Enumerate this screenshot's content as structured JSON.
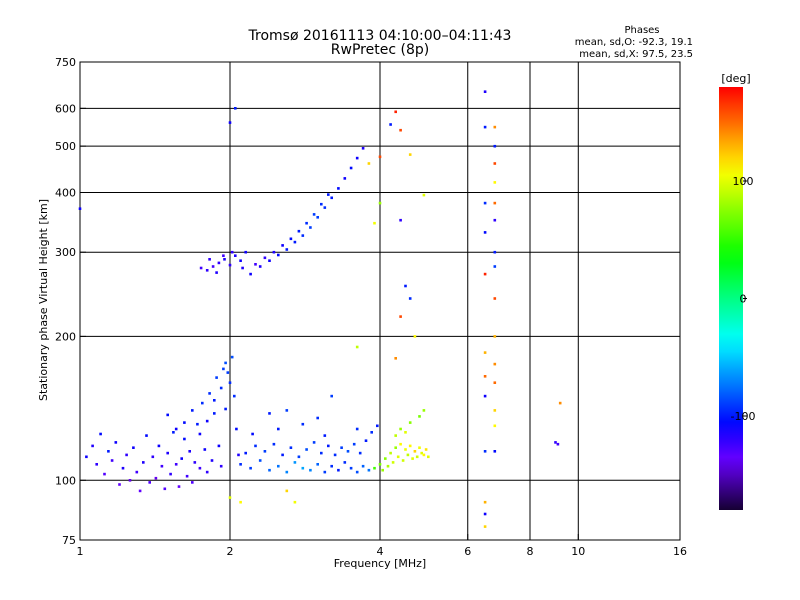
{
  "chart_data": {
    "type": "scatter",
    "title": "Tromsø 20161113 04:10:00–04:11:43",
    "subtitle": "RwPretec (8p)",
    "xlabel": "Frequency [MHz]",
    "ylabel": "Stationary phase Virtual Height [km]",
    "x_scale": "log",
    "y_scale": "log",
    "xlim": [
      1,
      16
    ],
    "ylim": [
      75,
      750
    ],
    "x_ticks": [
      1,
      2,
      4,
      6,
      8,
      10,
      16
    ],
    "y_ticks": [
      75,
      100,
      200,
      300,
      400,
      500,
      600,
      750
    ],
    "x_gridlines": [
      2,
      4,
      6,
      8,
      10
    ],
    "y_gridlines": [
      100,
      200,
      300,
      400,
      500,
      600
    ],
    "stats": {
      "heading": "Phases",
      "line_o": "mean, sd,O: -92.3, 19.1",
      "line_x": "mean, sd,X:  97.5, 23.5"
    },
    "colorbar": {
      "unit_label": "[deg]",
      "range": [
        -180,
        180
      ],
      "ticks": [
        100,
        0,
        -100
      ]
    },
    "series": [
      {
        "points": [
          [
            1.03,
            112,
            -110
          ],
          [
            1.06,
            118,
            -115
          ],
          [
            1.08,
            108,
            -120
          ],
          [
            1.1,
            125,
            -105
          ],
          [
            1.12,
            103,
            -130
          ],
          [
            1.14,
            115,
            -100
          ],
          [
            1.16,
            110,
            -125
          ],
          [
            1.18,
            120,
            -110
          ],
          [
            1.2,
            98,
            -135
          ],
          [
            1.22,
            106,
            -115
          ],
          [
            1.24,
            113,
            -120
          ],
          [
            1.26,
            100,
            -140
          ],
          [
            1.28,
            117,
            -110
          ],
          [
            1.3,
            104,
            -125
          ],
          [
            1.32,
            95,
            -135
          ],
          [
            1.34,
            109,
            -115
          ],
          [
            1.36,
            124,
            -105
          ],
          [
            1.38,
            99,
            -130
          ],
          [
            1.4,
            112,
            -120
          ],
          [
            1.42,
            101,
            -140
          ],
          [
            1.44,
            118,
            -110
          ],
          [
            1.46,
            107,
            -125
          ],
          [
            1.48,
            96,
            -130
          ],
          [
            1.5,
            114,
            -115
          ],
          [
            1.52,
            103,
            -120
          ],
          [
            1.54,
            126,
            -100
          ],
          [
            1.56,
            108,
            -125
          ],
          [
            1.58,
            97,
            -135
          ],
          [
            1.6,
            111,
            -110
          ],
          [
            1.62,
            122,
            -105
          ],
          [
            1.64,
            102,
            -125
          ],
          [
            1.66,
            115,
            -115
          ],
          [
            1.68,
            99,
            -130
          ],
          [
            1.7,
            109,
            -120
          ],
          [
            1.72,
            131,
            -100
          ],
          [
            1.74,
            106,
            -125
          ],
          [
            1.76,
            145,
            -95
          ],
          [
            1.78,
            116,
            -110
          ],
          [
            1.8,
            104,
            -120
          ],
          [
            1.82,
            152,
            -95
          ],
          [
            1.84,
            110,
            -115
          ],
          [
            1.86,
            138,
            -100
          ],
          [
            1.88,
            164,
            -90
          ],
          [
            1.9,
            118,
            -110
          ],
          [
            1.92,
            107,
            -120
          ],
          [
            1.94,
            171,
            -90
          ],
          [
            1.96,
            176,
            -85
          ],
          [
            1.98,
            168,
            -90
          ],
          [
            2.0,
            160,
            -95
          ],
          [
            2.02,
            181,
            -85
          ],
          [
            2.04,
            150,
            -95
          ],
          [
            2.06,
            128,
            -105
          ],
          [
            2.08,
            113,
            -115
          ],
          [
            1.96,
            141,
            -100
          ],
          [
            1.92,
            156,
            -95
          ],
          [
            1.86,
            147,
            -100
          ],
          [
            1.8,
            133,
            -110
          ],
          [
            1.74,
            125,
            -110
          ],
          [
            1.68,
            140,
            -100
          ],
          [
            1.62,
            132,
            -105
          ],
          [
            1.56,
            128,
            -110
          ],
          [
            1.5,
            137,
            -105
          ],
          [
            2.1,
            108,
            -95
          ],
          [
            2.2,
            106,
            -90
          ],
          [
            2.3,
            110,
            -85
          ],
          [
            2.4,
            105,
            -80
          ],
          [
            2.5,
            107,
            -75
          ],
          [
            2.6,
            104,
            -70
          ],
          [
            2.7,
            109,
            -65
          ],
          [
            2.8,
            106,
            -60
          ],
          [
            2.9,
            105,
            -70
          ],
          [
            3.0,
            108,
            -80
          ],
          [
            3.1,
            104,
            -90
          ],
          [
            3.2,
            107,
            -95
          ],
          [
            3.3,
            105,
            -100
          ],
          [
            3.4,
            109,
            -95
          ],
          [
            3.5,
            106,
            -90
          ],
          [
            3.6,
            104,
            -85
          ],
          [
            3.7,
            107,
            -80
          ],
          [
            3.8,
            105,
            -75
          ],
          [
            2.15,
            114,
            -100
          ],
          [
            2.25,
            118,
            -95
          ],
          [
            2.35,
            115,
            -90
          ],
          [
            2.45,
            119,
            -95
          ],
          [
            2.55,
            113,
            -100
          ],
          [
            2.65,
            117,
            -95
          ],
          [
            2.75,
            112,
            -90
          ],
          [
            2.85,
            116,
            -85
          ],
          [
            2.95,
            120,
            -90
          ],
          [
            3.05,
            114,
            -95
          ],
          [
            3.15,
            118,
            -100
          ],
          [
            3.25,
            113,
            -95
          ],
          [
            3.35,
            117,
            -90
          ],
          [
            3.45,
            115,
            -85
          ],
          [
            3.55,
            119,
            -90
          ],
          [
            3.65,
            114,
            -95
          ],
          [
            3.75,
            121,
            -100
          ],
          [
            3.85,
            126,
            -95
          ],
          [
            3.95,
            130,
            -100
          ],
          [
            2.22,
            125,
            -105
          ],
          [
            2.5,
            128,
            -100
          ],
          [
            2.8,
            131,
            -95
          ],
          [
            3.1,
            124,
            -100
          ],
          [
            3.6,
            128,
            -95
          ],
          [
            2.6,
            140,
            -90
          ],
          [
            3.0,
            135,
            -95
          ],
          [
            2.4,
            138,
            -100
          ],
          [
            3.9,
            106,
            55
          ],
          [
            4.0,
            108,
            70
          ],
          [
            4.05,
            105,
            80
          ],
          [
            4.1,
            111,
            75
          ],
          [
            4.15,
            107,
            85
          ],
          [
            4.2,
            114,
            90
          ],
          [
            4.25,
            109,
            95
          ],
          [
            4.3,
            117,
            80
          ],
          [
            4.35,
            112,
            100
          ],
          [
            4.4,
            119,
            110
          ],
          [
            4.45,
            110,
            95
          ],
          [
            4.5,
            116,
            105
          ],
          [
            4.55,
            113,
            90
          ],
          [
            4.6,
            118,
            110
          ],
          [
            4.65,
            111,
            100
          ],
          [
            4.7,
            115,
            120
          ],
          [
            4.75,
            112,
            95
          ],
          [
            4.8,
            117,
            105
          ],
          [
            4.85,
            114,
            100
          ],
          [
            4.9,
            113,
            110
          ],
          [
            4.95,
            116,
            115
          ],
          [
            5.0,
            112,
            100
          ],
          [
            4.4,
            128,
            80
          ],
          [
            4.6,
            132,
            75
          ],
          [
            4.8,
            136,
            70
          ],
          [
            4.9,
            140,
            80
          ],
          [
            4.3,
            124,
            90
          ],
          [
            4.5,
            126,
            100
          ],
          [
            2.2,
            270,
            -110
          ],
          [
            2.3,
            280,
            -115
          ],
          [
            2.4,
            288,
            -110
          ],
          [
            2.5,
            296,
            -105
          ],
          [
            2.6,
            304,
            -100
          ],
          [
            2.7,
            315,
            -100
          ],
          [
            2.8,
            325,
            -95
          ],
          [
            2.9,
            338,
            -90
          ],
          [
            3.0,
            355,
            -90
          ],
          [
            3.1,
            372,
            -95
          ],
          [
            3.2,
            390,
            -100
          ],
          [
            3.3,
            408,
            -105
          ],
          [
            3.4,
            428,
            -110
          ],
          [
            3.5,
            450,
            -105
          ],
          [
            3.6,
            472,
            -110
          ],
          [
            3.7,
            495,
            -115
          ],
          [
            2.25,
            283,
            -125
          ],
          [
            2.35,
            292,
            -120
          ],
          [
            2.45,
            300,
            -115
          ],
          [
            2.55,
            310,
            -110
          ],
          [
            2.65,
            320,
            -105
          ],
          [
            2.75,
            332,
            -100
          ],
          [
            2.85,
            345,
            -95
          ],
          [
            2.95,
            360,
            -90
          ],
          [
            3.05,
            378,
            -95
          ],
          [
            3.15,
            396,
            -100
          ],
          [
            1.8,
            275,
            -120
          ],
          [
            1.85,
            280,
            -125
          ],
          [
            1.9,
            285,
            -120
          ],
          [
            1.95,
            290,
            -115
          ],
          [
            2.0,
            282,
            -120
          ],
          [
            2.05,
            295,
            -115
          ],
          [
            2.1,
            288,
            -110
          ],
          [
            2.15,
            300,
            -110
          ],
          [
            1.75,
            278,
            -125
          ],
          [
            1.82,
            290,
            -120
          ],
          [
            1.88,
            272,
            -115
          ],
          [
            1.94,
            295,
            -125
          ],
          [
            2.02,
            300,
            -120
          ],
          [
            2.12,
            278,
            -115
          ],
          [
            6.5,
            650,
            -115
          ],
          [
            6.5,
            548,
            -100
          ],
          [
            6.5,
            380,
            -95
          ],
          [
            6.5,
            330,
            -105
          ],
          [
            6.5,
            270,
            170
          ],
          [
            6.5,
            185,
            130
          ],
          [
            6.5,
            165,
            150
          ],
          [
            6.5,
            150,
            -110
          ],
          [
            6.5,
            115,
            -95
          ],
          [
            6.5,
            90,
            130
          ],
          [
            6.5,
            85,
            -110
          ],
          [
            6.5,
            80,
            120
          ],
          [
            6.8,
            548,
            140
          ],
          [
            6.8,
            500,
            -100
          ],
          [
            6.8,
            460,
            160
          ],
          [
            6.8,
            420,
            110
          ],
          [
            6.8,
            380,
            150
          ],
          [
            6.8,
            350,
            -120
          ],
          [
            6.8,
            300,
            -100
          ],
          [
            6.8,
            280,
            -90
          ],
          [
            6.8,
            240,
            160
          ],
          [
            6.8,
            200,
            130
          ],
          [
            6.8,
            175,
            140
          ],
          [
            6.8,
            160,
            150
          ],
          [
            6.8,
            140,
            120
          ],
          [
            6.8,
            130,
            110
          ],
          [
            6.8,
            115,
            -105
          ],
          [
            4.3,
            590,
            170
          ],
          [
            4.2,
            555,
            -100
          ],
          [
            4.4,
            540,
            160
          ],
          [
            4.6,
            480,
            120
          ],
          [
            4.9,
            395,
            100
          ],
          [
            4.4,
            350,
            -120
          ],
          [
            4.5,
            255,
            -100
          ],
          [
            4.6,
            240,
            -95
          ],
          [
            4.4,
            220,
            160
          ],
          [
            4.7,
            200,
            110
          ],
          [
            4.3,
            180,
            140
          ],
          [
            3.6,
            190,
            90
          ],
          [
            3.2,
            150,
            -90
          ],
          [
            4.0,
            380,
            80
          ],
          [
            4.0,
            475,
            160
          ],
          [
            3.8,
            460,
            120
          ],
          [
            3.9,
            345,
            105
          ],
          [
            9.0,
            120,
            -120
          ],
          [
            9.1,
            119,
            -125
          ],
          [
            9.2,
            145,
            140
          ],
          [
            1.0,
            370,
            -110
          ],
          [
            2.0,
            560,
            -110
          ],
          [
            2.05,
            600,
            -100
          ],
          [
            2.0,
            92,
            100
          ],
          [
            2.1,
            90,
            110
          ],
          [
            2.6,
            95,
            120
          ],
          [
            2.7,
            90,
            105
          ]
        ]
      }
    ]
  }
}
